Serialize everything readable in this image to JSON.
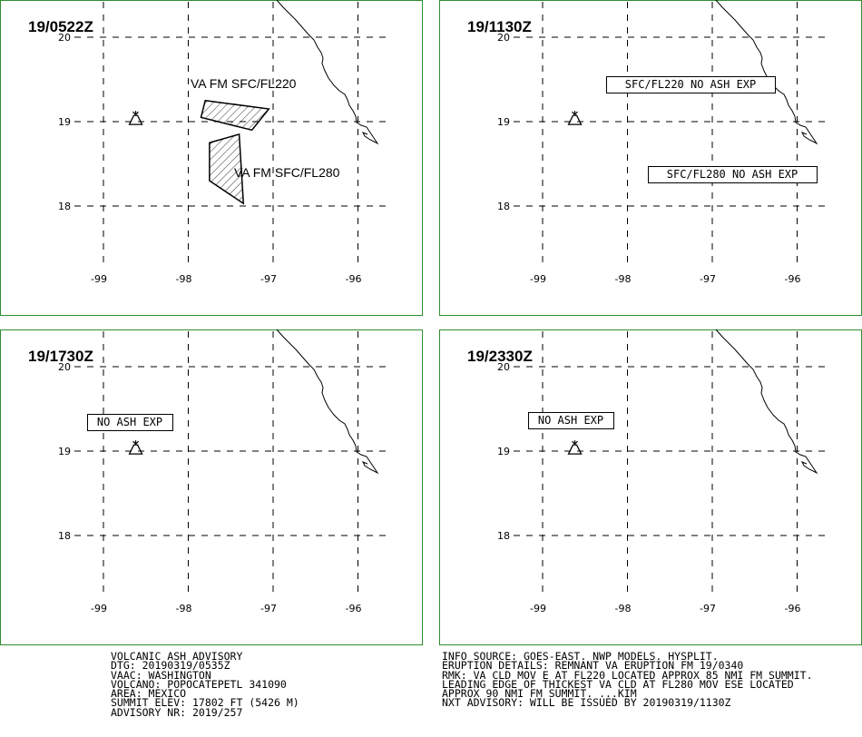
{
  "panels": [
    {
      "time": "19/0522Z",
      "lat_labels": [
        "20",
        "19",
        "18"
      ],
      "lon_labels": [
        "-99",
        "-98",
        "-97",
        "-96"
      ],
      "areas": [
        {
          "label": "VA FM SFC/FL220",
          "polygon": [
            [
              -97.8,
              19.25
            ],
            [
              -97.05,
              19.15
            ],
            [
              -97.25,
              18.9
            ],
            [
              -97.85,
              19.05
            ]
          ]
        },
        {
          "label": "VA FM SFC/FL280",
          "polygon": [
            [
              -97.75,
              18.75
            ],
            [
              -97.4,
              18.85
            ],
            [
              -97.35,
              18.03
            ],
            [
              -97.75,
              18.3
            ]
          ]
        }
      ],
      "boxes": []
    },
    {
      "time": "19/1130Z",
      "lat_labels": [
        "20",
        "19",
        "18"
      ],
      "lon_labels": [
        "-99",
        "-98",
        "-97",
        "-96"
      ],
      "areas": [],
      "boxes": [
        "SFC/FL220 NO ASH EXP",
        "SFC/FL280 NO ASH EXP"
      ]
    },
    {
      "time": "19/1730Z",
      "lat_labels": [
        "20",
        "19",
        "18"
      ],
      "lon_labels": [
        "-99",
        "-98",
        "-97",
        "-96"
      ],
      "areas": [],
      "boxes": [
        "NO ASH EXP"
      ]
    },
    {
      "time": "19/2330Z",
      "lat_labels": [
        "20",
        "19",
        "18"
      ],
      "lon_labels": [
        "-99",
        "-98",
        "-97",
        "-96"
      ],
      "areas": [],
      "boxes": [
        "NO ASH EXP"
      ]
    }
  ],
  "volcano": {
    "lon": -98.62,
    "lat": 19.02,
    "icon": "volcano-icon"
  },
  "advisory_left": [
    "VOLCANIC ASH ADVISORY",
    "DTG: 20190319/0535Z",
    "VAAC: WASHINGTON",
    "VOLCANO: POPOCATEPETL 341090",
    "AREA: MEXICO",
    "SUMMIT ELEV: 17802 FT (5426 M)",
    "ADVISORY NR: 2019/257"
  ],
  "advisory_right": [
    "INFO SOURCE: GOES-EAST. NWP MODELS. HYSPLIT.",
    "ERUPTION DETAILS: REMNANT VA ERUPTION FM 19/0340",
    "RMK: VA CLD MOV E AT FL220 LOCATED APPROX 85 NMI FM SUMMIT.",
    "LEADING EDGE OF THICKEST VA CLD AT FL280 MOV ESE LOCATED",
    "APPROX 90 NMI FM SUMMIT. ...KIM",
    "NXT ADVISORY: WILL BE ISSUED BY 20190319/1130Z"
  ],
  "colors": {
    "panel_border": "#2f8f2f",
    "ink": "#000000"
  }
}
